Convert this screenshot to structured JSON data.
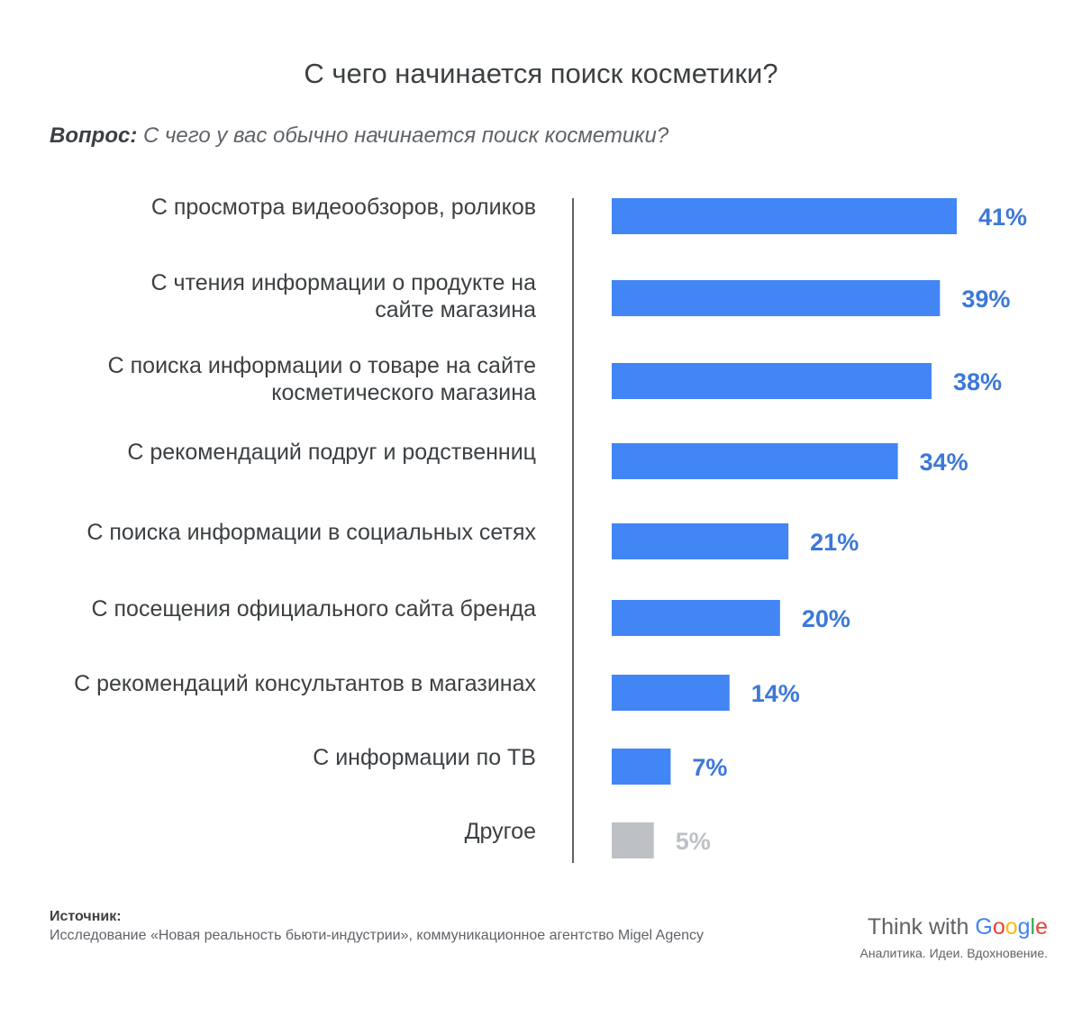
{
  "title": "С чего начинается поиск косметики?",
  "question": {
    "prefix": "Вопрос:",
    "text": " С чего у вас обычно начинается поиск косметики?"
  },
  "chart_data": {
    "type": "bar",
    "orientation": "horizontal",
    "categories": [
      [
        "С просмотра видеообзоров, роликов"
      ],
      [
        "С чтения информации о продукте на",
        "сайте магазина"
      ],
      [
        "С поиска информации о товаре на сайте",
        "косметического магазина"
      ],
      [
        "С рекомендаций подруг и родственниц"
      ],
      [
        "С поиска информации в социальных сетях"
      ],
      [
        "С посещения официального сайта бренда"
      ],
      [
        "С рекомендаций консультантов в магазинах"
      ],
      [
        "С информации по ТВ"
      ],
      [
        "Другое"
      ]
    ],
    "values": [
      41,
      39,
      38,
      34,
      21,
      20,
      14,
      7,
      5
    ],
    "value_labels": [
      "41%",
      "39%",
      "38%",
      "34%",
      "21%",
      "20%",
      "14%",
      "7%",
      "5%"
    ],
    "colors": [
      "#4285f4",
      "#4285f4",
      "#4285f4",
      "#4285f4",
      "#4285f4",
      "#4285f4",
      "#4285f4",
      "#4285f4",
      "#bdc1c6"
    ],
    "label_colors": [
      "#3c78d8",
      "#3c78d8",
      "#3c78d8",
      "#3c78d8",
      "#3c78d8",
      "#3c78d8",
      "#3c78d8",
      "#3c78d8",
      "#bdc1c6"
    ],
    "xlim": [
      0,
      41
    ],
    "grid": false,
    "legend": "none"
  },
  "source": {
    "heading": "Источник:",
    "text": "Исследование «Новая реальность бьюти-индустрии», коммуникационное агентство Migel Agency"
  },
  "brand": {
    "prefix": "Think with ",
    "google": [
      "G",
      "o",
      "o",
      "g",
      "l",
      "e"
    ],
    "tagline": "Аналитика. Идеи. Вдохновение."
  }
}
